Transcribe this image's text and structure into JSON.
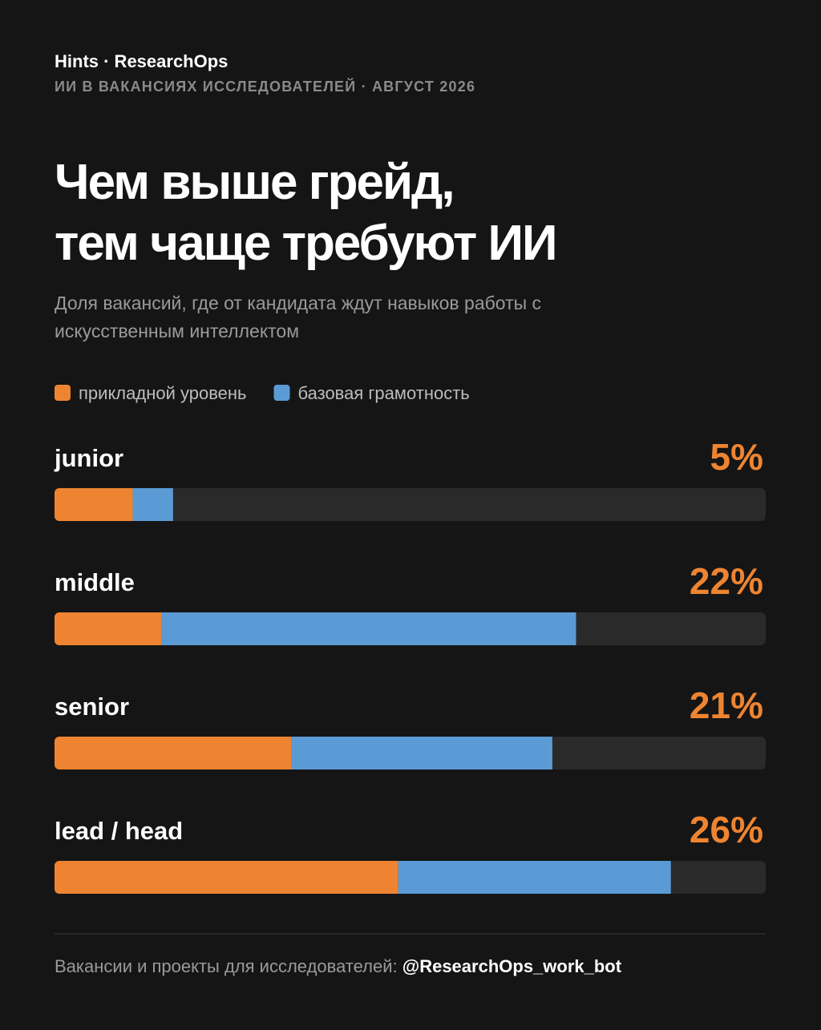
{
  "header": {
    "brand": "Hints · ResearchOps",
    "kicker": "ИИ В ВАКАНСИЯХ ИССЛЕДОВАТЕЛЕЙ · АВГУСТ 2026"
  },
  "chart_data": {
    "type": "bar",
    "orientation": "horizontal",
    "stacked": true,
    "title": [
      "Чем выше грейд,",
      "тем чаще требуют ИИ"
    ],
    "subtitle": [
      "Доля вакансий, где от кандидата ждут навыков работы с",
      "искусственным интеллектом"
    ],
    "categories": [
      "junior",
      "middle",
      "senior",
      "lead / head"
    ],
    "series": [
      {
        "name": "прикладной уровень",
        "color": "#ee8431",
        "values": [
          3.3,
          4.5,
          10,
          14.5
        ]
      },
      {
        "name": "базовая грамотность",
        "color": "#5b9bd5",
        "values": [
          1.7,
          17.5,
          11,
          11.5
        ]
      }
    ],
    "total_labels": [
      "5%",
      "22%",
      "21%",
      "26%"
    ],
    "xlim": [
      0,
      30
    ],
    "track_color": "#2a2a2a",
    "label_color": "#ee8431"
  },
  "footer": {
    "text": "Вакансии и проекты для исследователей: ",
    "handle": "@ResearchOps_work_bot"
  }
}
